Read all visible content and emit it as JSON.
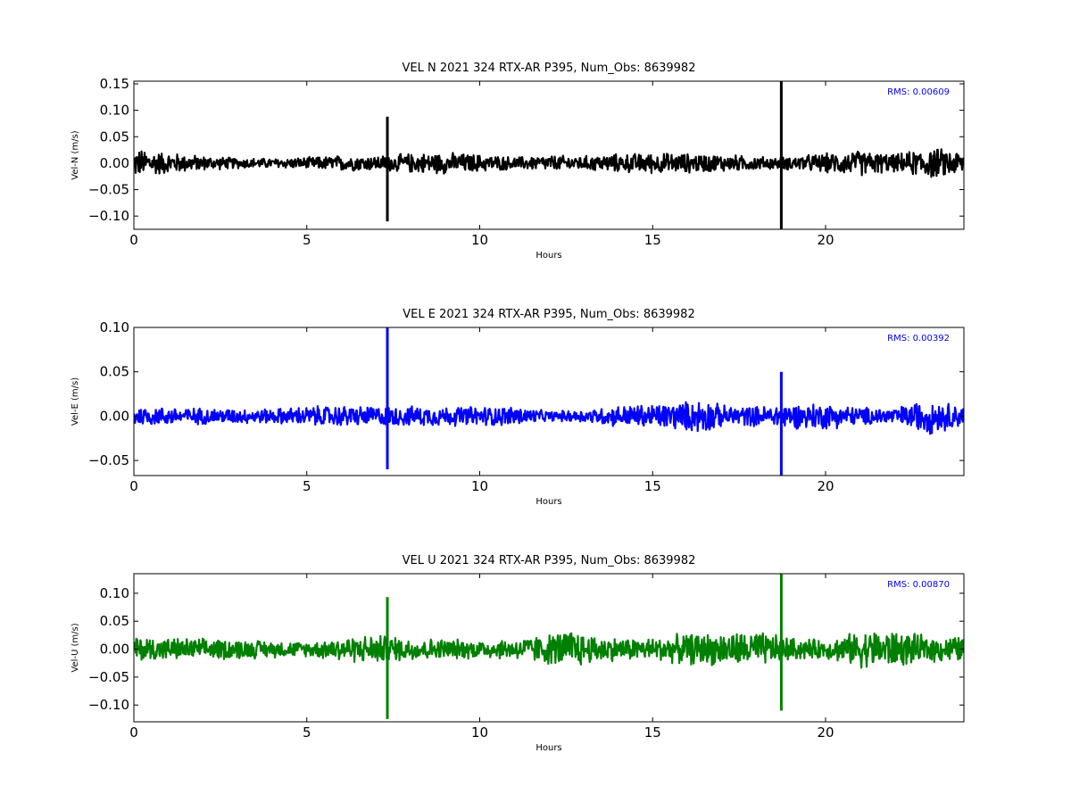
{
  "chart_data": [
    {
      "type": "line",
      "title": "VEL N 2021 324 RTX-AR  P395, Num_Obs: 8639982",
      "xlabel": "Hours",
      "ylabel": "Vel-N (m/s)",
      "xlim": [
        0,
        24
      ],
      "ylim": [
        -0.125,
        0.155
      ],
      "xticks": [
        0,
        5,
        10,
        15,
        20
      ],
      "yticks": [
        -0.1,
        -0.05,
        0.0,
        0.05,
        0.1,
        0.15
      ],
      "ytick_labels": [
        "−0.10",
        "−0.05",
        "0.00",
        "0.05",
        "0.10",
        "0.15"
      ],
      "grid": false,
      "annotation": "RMS:  0.00609",
      "annotation_color": "#0000ff",
      "series": [
        {
          "color": "#000000",
          "noise_envelope": {
            "x": [
              0,
              1,
              2,
              3,
              4,
              5,
              6,
              7,
              7.2,
              8,
              9,
              10,
              11,
              12,
              13,
              14,
              15,
              16,
              17,
              18,
              18.6,
              19,
              20,
              21,
              22,
              23,
              24
            ],
            "y": [
              0.03,
              0.022,
              0.015,
              0.011,
              0.01,
              0.012,
              0.016,
              0.015,
              0.016,
              0.02,
              0.022,
              0.018,
              0.013,
              0.016,
              0.015,
              0.019,
              0.021,
              0.02,
              0.018,
              0.014,
              0.012,
              0.014,
              0.02,
              0.026,
              0.018,
              0.032,
              0.025
            ]
          },
          "spikes": [
            {
              "x": 7.33,
              "min": -0.11,
              "max": 0.088
            },
            {
              "x": 18.72,
              "min": -0.125,
              "max": 0.155
            }
          ]
        }
      ]
    },
    {
      "type": "line",
      "title": "VEL E 2021 324 RTX-AR  P395, Num_Obs: 8639982",
      "xlabel": "Hours",
      "ylabel": "Vel-E (m/s)",
      "xlim": [
        0,
        24
      ],
      "ylim": [
        -0.067,
        0.1
      ],
      "xticks": [
        0,
        5,
        10,
        15,
        20
      ],
      "yticks": [
        -0.05,
        0.0,
        0.05,
        0.1
      ],
      "ytick_labels": [
        "−0.05",
        "0.00",
        "0.05",
        "0.10"
      ],
      "grid": false,
      "annotation": "RMS:  0.00392",
      "annotation_color": "#0000ff",
      "series": [
        {
          "color": "#0000ff",
          "noise_envelope": {
            "x": [
              0,
              1,
              2,
              3,
              4,
              5,
              6,
              7,
              8,
              9,
              10,
              11,
              12,
              13,
              14,
              15,
              16,
              16.5,
              17,
              18,
              19,
              20,
              21,
              22,
              23,
              24
            ],
            "y": [
              0.012,
              0.011,
              0.01,
              0.009,
              0.009,
              0.012,
              0.013,
              0.012,
              0.012,
              0.012,
              0.012,
              0.012,
              0.006,
              0.008,
              0.013,
              0.015,
              0.018,
              0.022,
              0.013,
              0.012,
              0.015,
              0.016,
              0.011,
              0.01,
              0.022,
              0.012
            ]
          },
          "spikes": [
            {
              "x": 7.33,
              "min": -0.06,
              "max": 0.1
            },
            {
              "x": 18.72,
              "min": -0.067,
              "max": 0.05
            }
          ]
        }
      ]
    },
    {
      "type": "line",
      "title": "VEL U 2021 324 RTX-AR  P395, Num_Obs: 8639982",
      "xlabel": "Hours",
      "ylabel": "Vel-U (m/s)",
      "xlim": [
        0,
        24
      ],
      "ylim": [
        -0.13,
        0.135
      ],
      "xticks": [
        0,
        5,
        10,
        15,
        20
      ],
      "yticks": [
        -0.1,
        -0.05,
        0.0,
        0.05,
        0.1
      ],
      "ytick_labels": [
        "−0.10",
        "−0.05",
        "0.00",
        "0.05",
        "0.10"
      ],
      "grid": false,
      "annotation": "RMS:  0.00870",
      "annotation_color": "#0000ff",
      "series": [
        {
          "color": "#008000",
          "noise_envelope": {
            "x": [
              0,
              1,
              2,
              3,
              4,
              5,
              6,
              7,
              8,
              9,
              10,
              11,
              12,
              12.8,
              13,
              14,
              15,
              16,
              17,
              18,
              19,
              20,
              21,
              21.5,
              22,
              23,
              24
            ],
            "y": [
              0.025,
              0.022,
              0.02,
              0.02,
              0.016,
              0.014,
              0.024,
              0.028,
              0.022,
              0.02,
              0.018,
              0.02,
              0.03,
              0.04,
              0.03,
              0.022,
              0.022,
              0.03,
              0.032,
              0.035,
              0.022,
              0.018,
              0.035,
              0.038,
              0.035,
              0.025,
              0.025
            ]
          },
          "spikes": [
            {
              "x": 7.33,
              "min": -0.125,
              "max": 0.093
            },
            {
              "x": 18.72,
              "min": -0.11,
              "max": 0.135
            }
          ]
        }
      ]
    }
  ]
}
